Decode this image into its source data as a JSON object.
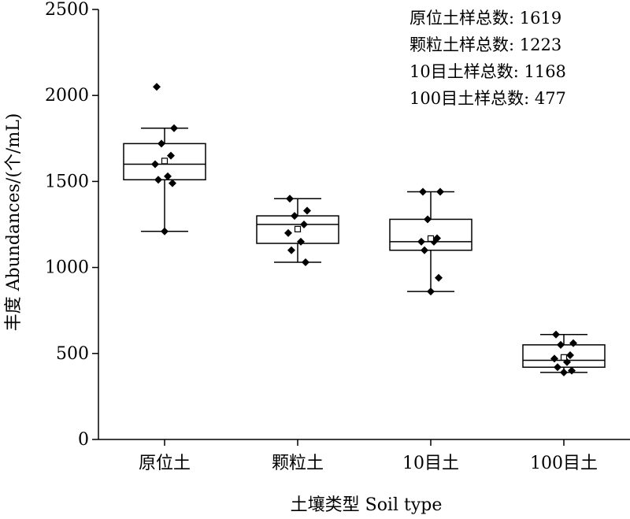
{
  "chart_data": {
    "type": "box",
    "xlabel": "土壤类型 Soil type",
    "ylabel": "丰度 Abundances/(个/mL)",
    "ylim": [
      0,
      2500
    ],
    "yticks": [
      0,
      500,
      1000,
      1500,
      2000,
      2500
    ],
    "categories": [
      "原位土",
      "颗粒土",
      "10目土",
      "100目土"
    ],
    "boxes": [
      {
        "category": "原位土",
        "min": 1210,
        "q1": 1510,
        "median": 1600,
        "q3": 1720,
        "max": 1810,
        "mean": 1619,
        "points": [
          2050,
          1810,
          1720,
          1650,
          1600,
          1530,
          1510,
          1490,
          1210
        ]
      },
      {
        "category": "颗粒土",
        "min": 1030,
        "q1": 1140,
        "median": 1250,
        "q3": 1300,
        "max": 1400,
        "mean": 1223,
        "points": [
          1400,
          1330,
          1300,
          1250,
          1200,
          1150,
          1100,
          1030
        ]
      },
      {
        "category": "10目土",
        "min": 860,
        "q1": 1100,
        "median": 1150,
        "q3": 1280,
        "max": 1440,
        "mean": 1168,
        "points": [
          1440,
          1440,
          1280,
          1170,
          1150,
          1150,
          1100,
          940,
          860
        ]
      },
      {
        "category": "100目土",
        "min": 390,
        "q1": 420,
        "median": 460,
        "q3": 550,
        "max": 610,
        "mean": 477,
        "points": [
          610,
          560,
          550,
          490,
          470,
          450,
          420,
          400,
          390
        ]
      }
    ],
    "annotations": [
      "原位土样总数: 1619",
      "颗粒土样总数: 1223",
      "10目土样总数: 1168",
      "100目土样总数: 477"
    ],
    "grid": false,
    "legend": "none"
  }
}
